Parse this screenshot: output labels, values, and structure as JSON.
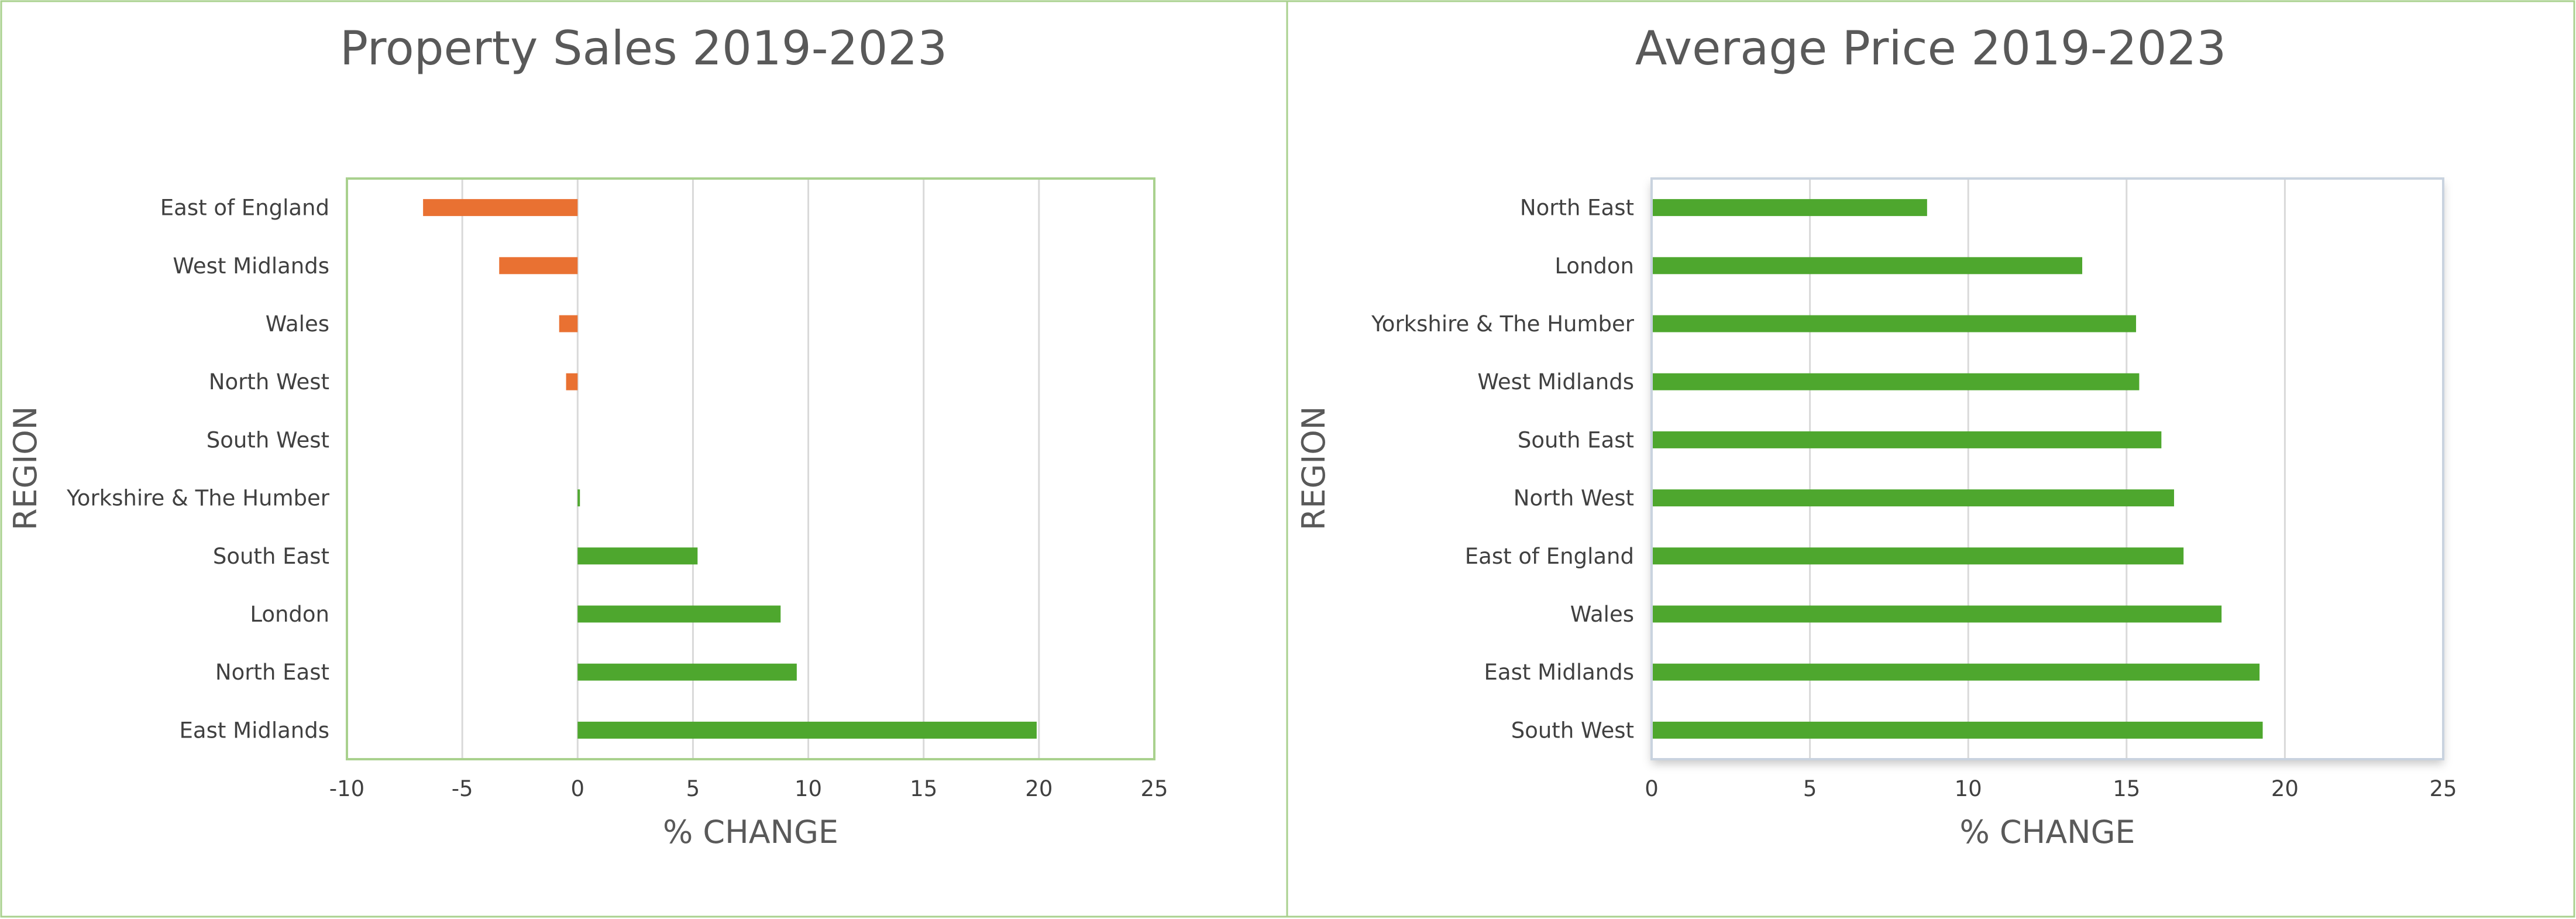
{
  "chart_data": [
    {
      "type": "bar",
      "orientation": "horizontal",
      "title": "Property Sales 2019-2023",
      "xlabel": "% CHANGE",
      "ylabel": "REGION",
      "xlim": [
        -10,
        25
      ],
      "xticks": [
        "-10",
        "-5",
        "0",
        "5",
        "10",
        "15",
        "20",
        "25"
      ],
      "grid": true,
      "legend": "none",
      "categories": [
        "East of England",
        "West Midlands",
        "Wales",
        "North West",
        "South West",
        "Yorkshire & The Humber",
        "South East",
        "London",
        "North East",
        "East Midlands"
      ],
      "values": [
        -6.7,
        -3.4,
        -0.8,
        -0.5,
        0.0,
        0.1,
        5.2,
        8.8,
        9.5,
        19.9
      ],
      "colors": {
        "positive": "#4ea72e",
        "negative": "#e97132",
        "plot_border": "#a9d18e",
        "panel_border": "#a9d18e"
      }
    },
    {
      "type": "bar",
      "orientation": "horizontal",
      "title": "Average Price 2019-2023",
      "xlabel": "% CHANGE",
      "ylabel": "REGION",
      "xlim": [
        0,
        25
      ],
      "xticks": [
        "0",
        "5",
        "10",
        "15",
        "20",
        "25"
      ],
      "grid": true,
      "legend": "none",
      "categories": [
        "North East",
        "London",
        "Yorkshire & The Humber",
        "West Midlands",
        "South East",
        "North West",
        "East of England",
        "Wales",
        "East Midlands",
        "South West"
      ],
      "values": [
        8.7,
        13.6,
        15.3,
        15.4,
        16.1,
        16.5,
        16.8,
        18.0,
        19.2,
        19.3
      ],
      "colors": {
        "positive": "#4ea72e",
        "negative": "#e97132",
        "plot_border": "#c9d3df",
        "panel_border": "#a9d18e"
      }
    }
  ]
}
